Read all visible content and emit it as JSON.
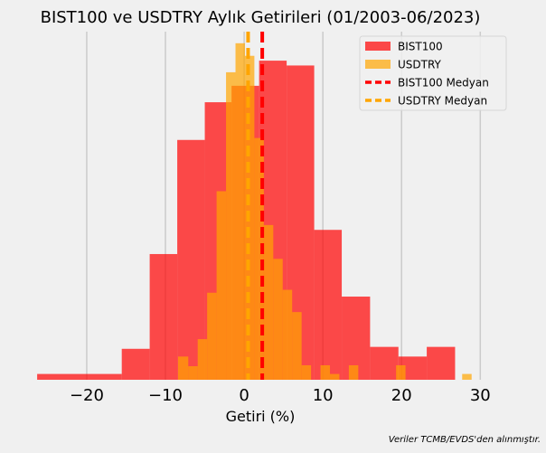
{
  "chart_data": {
    "type": "histogram",
    "title": "BIST100 ve USDTRY Aylık Getirileri (01/2003-06/2023)",
    "xlabel": "Getiri (%)",
    "ylabel": "",
    "source_note": "Veriler TCMB/EVDS'den alınmıştır.",
    "xlim": [
      -27,
      31
    ],
    "ylim": [
      0,
      36
    ],
    "x_ticks": [
      -20,
      -10,
      0,
      10,
      20,
      30
    ],
    "x_tick_labels": [
      "−20",
      "−10",
      "0",
      "10",
      "20",
      "30"
    ],
    "grid": "vertical",
    "legend_position": "top-right",
    "series": [
      {
        "name": "BIST100",
        "color": "#ff0000",
        "opacity": 0.7,
        "bin_edges": [
          -26.3,
          -15.55,
          -12.0,
          -8.5,
          -5.0,
          -1.6,
          1.9,
          5.4,
          8.9,
          12.4,
          16.0,
          19.6,
          23.2,
          26.8
        ],
        "counts": [
          0.6,
          3.2,
          13.0,
          24.8,
          28.7,
          30.4,
          33.0,
          32.5,
          15.5,
          8.6,
          3.4,
          2.4,
          3.4
        ]
      },
      {
        "name": "USDTRY",
        "color": "#ffa500",
        "opacity": 0.7,
        "bin_edges": [
          -8.4,
          -7.1,
          -5.9,
          -4.7,
          -3.5,
          -2.3,
          -1.1,
          0.1,
          1.3,
          2.5,
          3.7,
          4.9,
          6.1,
          7.3,
          8.5,
          9.7,
          10.9,
          12.1,
          13.3,
          14.5,
          15.7,
          16.9,
          18.1,
          19.3,
          20.5,
          21.7,
          22.9,
          24.1,
          25.3,
          26.5,
          27.7,
          28.9
        ],
        "counts": [
          2.4,
          1.4,
          4.2,
          9.0,
          19.5,
          31.8,
          34.8,
          33.5,
          25.0,
          16.0,
          12.5,
          9.3,
          7.0,
          1.5,
          0,
          1.5,
          0.6,
          0,
          1.5,
          0,
          0,
          0,
          0,
          1.5,
          0,
          0,
          0,
          0,
          0,
          0,
          0.6
        ]
      }
    ],
    "medians": [
      {
        "name": "BIST100 Medyan",
        "value": 2.3,
        "color": "#ff0000"
      },
      {
        "name": "USDTRY Medyan",
        "value": 0.5,
        "color": "#ffa500"
      }
    ],
    "legend": [
      {
        "label": "BIST100",
        "kind": "patch",
        "color": "#ff0000"
      },
      {
        "label": "USDTRY",
        "kind": "patch",
        "color": "#ffa500"
      },
      {
        "label": "BIST100 Medyan",
        "kind": "dash",
        "color": "#ff0000"
      },
      {
        "label": "USDTRY Medyan",
        "kind": "dash",
        "color": "#ffa500"
      }
    ]
  }
}
